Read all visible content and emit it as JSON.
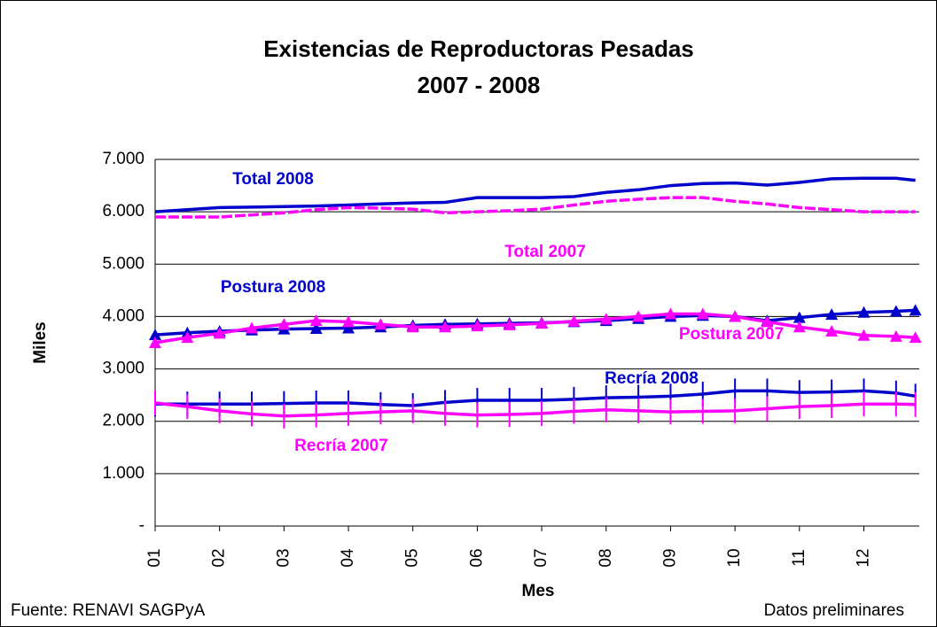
{
  "chart_data": {
    "type": "line",
    "title": "Existencias de Reproductoras Pesadas",
    "subtitle": "2007 - 2008",
    "x_label": "Mes",
    "y_label": "Miles",
    "source": "Fuente: RENAVI SAGPyA",
    "note": "Datos preliminares",
    "x": [
      1,
      1.5,
      2,
      2.5,
      3,
      3.5,
      4,
      4.5,
      5,
      5.5,
      6,
      6.5,
      7,
      7.5,
      8,
      8.5,
      9,
      9.5,
      10,
      10.5,
      11,
      11.5,
      12,
      12.5,
      12.8
    ],
    "xlim": [
      1,
      12.86
    ],
    "xticks": [
      {
        "value": 1,
        "label": "01"
      },
      {
        "value": 2,
        "label": "02"
      },
      {
        "value": 3,
        "label": "03"
      },
      {
        "value": 4,
        "label": "04"
      },
      {
        "value": 5,
        "label": "05"
      },
      {
        "value": 6,
        "label": "06"
      },
      {
        "value": 7,
        "label": "07"
      },
      {
        "value": 8,
        "label": "08"
      },
      {
        "value": 9,
        "label": "09"
      },
      {
        "value": 10,
        "label": "10"
      },
      {
        "value": 11,
        "label": "11"
      },
      {
        "value": 12,
        "label": "12"
      }
    ],
    "ylim": [
      0,
      7000
    ],
    "yticks": [
      {
        "value": 0,
        "label": "-"
      },
      {
        "value": 1000,
        "label": "1.000"
      },
      {
        "value": 2000,
        "label": "2.000"
      },
      {
        "value": 3000,
        "label": "3.000"
      },
      {
        "value": 4000,
        "label": "4.000"
      },
      {
        "value": 5000,
        "label": "5.000"
      },
      {
        "value": 6000,
        "label": "6.000"
      },
      {
        "value": 7000,
        "label": "7.000"
      }
    ],
    "grid": true,
    "series": [
      {
        "name": "Total 2008",
        "color": "#0000cc",
        "marker": "none",
        "dash": false,
        "values": [
          6000,
          6040,
          6080,
          6090,
          6100,
          6110,
          6130,
          6150,
          6170,
          6180,
          6270,
          6270,
          6270,
          6290,
          6370,
          6420,
          6500,
          6540,
          6550,
          6510,
          6560,
          6630,
          6640,
          6640,
          6600
        ]
      },
      {
        "name": "Total 2007",
        "color": "#ff00ff",
        "marker": "none",
        "dash": true,
        "values": [
          5900,
          5900,
          5900,
          5940,
          5980,
          6040,
          6080,
          6070,
          6050,
          5980,
          6000,
          6020,
          6050,
          6130,
          6200,
          6240,
          6270,
          6270,
          6200,
          6150,
          6080,
          6040,
          6000,
          6000,
          6000
        ]
      },
      {
        "name": "Postura 2008",
        "color": "#0000cc",
        "marker": "triangle",
        "dash": false,
        "values": [
          3650,
          3690,
          3720,
          3740,
          3760,
          3770,
          3780,
          3800,
          3830,
          3850,
          3860,
          3870,
          3880,
          3900,
          3920,
          3960,
          4000,
          4020,
          4000,
          3920,
          3980,
          4040,
          4080,
          4100,
          4120
        ]
      },
      {
        "name": "Postura 2007",
        "color": "#ff00ff",
        "marker": "triangle",
        "dash": false,
        "values": [
          3500,
          3600,
          3680,
          3780,
          3850,
          3920,
          3900,
          3850,
          3800,
          3800,
          3820,
          3840,
          3870,
          3910,
          3950,
          4000,
          4050,
          4050,
          4000,
          3900,
          3800,
          3720,
          3640,
          3620,
          3600
        ]
      },
      {
        "name": "Recría 2008",
        "color": "#0000cc",
        "marker": "tick",
        "dash": false,
        "values": [
          2330,
          2330,
          2330,
          2330,
          2340,
          2350,
          2350,
          2320,
          2300,
          2360,
          2400,
          2400,
          2400,
          2420,
          2450,
          2460,
          2480,
          2520,
          2580,
          2580,
          2550,
          2560,
          2580,
          2540,
          2480
        ]
      },
      {
        "name": "Recría 2007",
        "color": "#ff00ff",
        "marker": "tick",
        "dash": false,
        "values": [
          2350,
          2280,
          2200,
          2140,
          2100,
          2120,
          2150,
          2180,
          2200,
          2150,
          2120,
          2130,
          2150,
          2190,
          2220,
          2200,
          2180,
          2190,
          2200,
          2240,
          2280,
          2300,
          2330,
          2330,
          2320
        ]
      }
    ]
  }
}
